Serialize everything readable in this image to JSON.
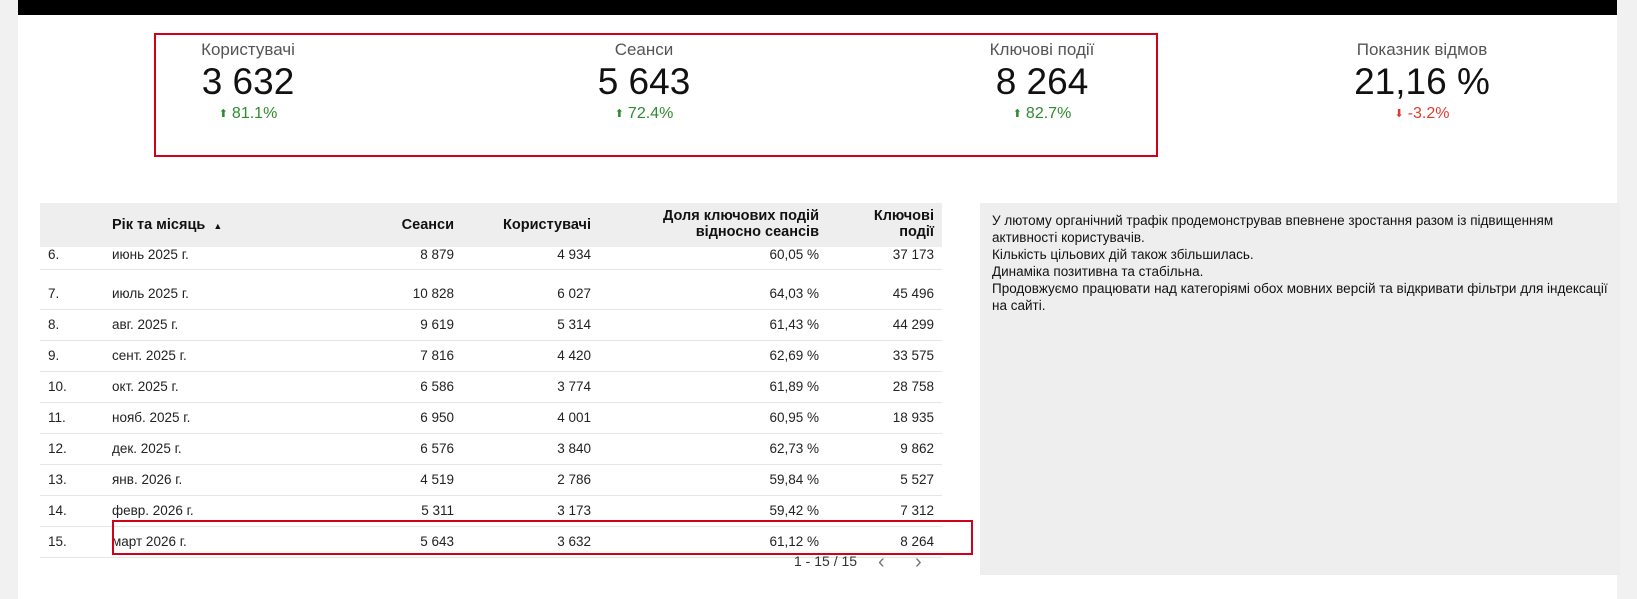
{
  "kpis": [
    {
      "label": "Користувачі",
      "value": "3 632",
      "delta": "81.1%",
      "direction": "up"
    },
    {
      "label": "Сеанси",
      "value": "5 643",
      "delta": "72.4%",
      "direction": "up"
    },
    {
      "label": "Ключові події",
      "value": "8 264",
      "delta": "82.7%",
      "direction": "up"
    },
    {
      "label": "Показник відмов",
      "value": "21,16 %",
      "delta": "-3.2%",
      "direction": "down"
    }
  ],
  "table": {
    "headers": {
      "month": "Рік та місяць",
      "sort_indicator": "▲",
      "sessions": "Сеанси",
      "users": "Користувачі",
      "share_l1": "Доля ключових подій",
      "share_l2": "відносно сеансів",
      "events_l1": "Ключові",
      "events_l2": "події"
    },
    "rows": [
      {
        "n": "6.",
        "month": "июнь 2025 г.",
        "sessions": "8 879",
        "users": "4 934",
        "share": "60,05 %",
        "events": "37 173"
      },
      {
        "n": "7.",
        "month": "июль 2025 г.",
        "sessions": "10 828",
        "users": "6 027",
        "share": "64,03 %",
        "events": "45 496"
      },
      {
        "n": "8.",
        "month": "авг. 2025 г.",
        "sessions": "9 619",
        "users": "5 314",
        "share": "61,43 %",
        "events": "44 299"
      },
      {
        "n": "9.",
        "month": "сент. 2025 г.",
        "sessions": "7 816",
        "users": "4 420",
        "share": "62,69 %",
        "events": "33 575"
      },
      {
        "n": "10.",
        "month": "окт. 2025 г.",
        "sessions": "6 586",
        "users": "3 774",
        "share": "61,89 %",
        "events": "28 758"
      },
      {
        "n": "11.",
        "month": "нояб. 2025 г.",
        "sessions": "6 950",
        "users": "4 001",
        "share": "60,95 %",
        "events": "18 935"
      },
      {
        "n": "12.",
        "month": "дек. 2025 г.",
        "sessions": "6 576",
        "users": "3 840",
        "share": "62,73 %",
        "events": "9 862"
      },
      {
        "n": "13.",
        "month": "янв. 2026 г.",
        "sessions": "4 519",
        "users": "2 786",
        "share": "59,84 %",
        "events": "5 527"
      },
      {
        "n": "14.",
        "month": "февр. 2026 г.",
        "sessions": "5 311",
        "users": "3 173",
        "share": "59,42 %",
        "events": "7 312"
      },
      {
        "n": "15.",
        "month": "март 2026 г.",
        "sessions": "5 643",
        "users": "3 632",
        "share": "61,12 %",
        "events": "8 264"
      }
    ],
    "pagination": "1 - 15 / 15",
    "prev": "‹",
    "next": "›"
  },
  "note": {
    "lines": [
      "У лютому органічний трафік продемонстрував впевнене зростання разом із підвищенням активності користувачів.",
      "Кількість цільових дій також збільшилась.",
      "Динаміка позитивна та стабільна.",
      "Продовжуємо  працювати над категоріямі обох мовних версій та відкривати фільтри для індексації на сайті."
    ]
  },
  "colors": {
    "up": "#2e8b2e",
    "down": "#e03b2f",
    "highlight": "#d0021b"
  }
}
